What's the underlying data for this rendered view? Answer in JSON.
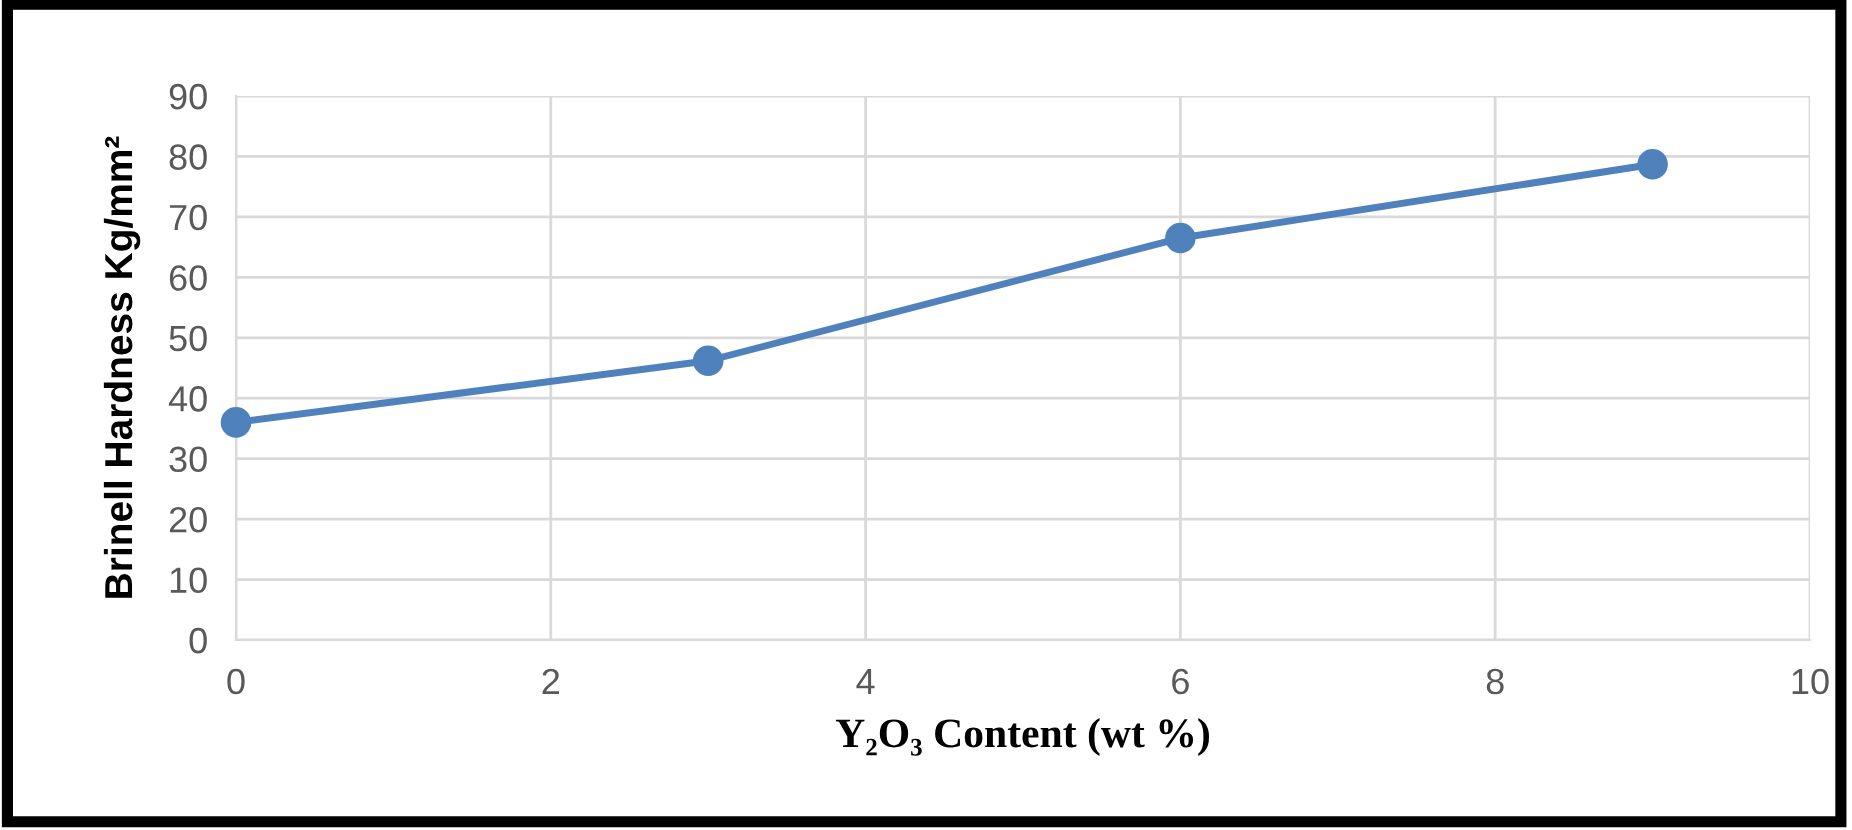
{
  "chart_data": {
    "type": "line",
    "xlabel": "Y₂O₃ Content (wt %)",
    "ylabel": "Brinell Hardness Kg/mm²",
    "x": [
      0,
      3,
      6,
      9
    ],
    "series": [
      {
        "color": "#4f81bd",
        "values": [
          36,
          46.2,
          66.5,
          78.7
        ]
      }
    ],
    "xlim": [
      0,
      10
    ],
    "xticks": [
      0,
      2,
      4,
      6,
      8,
      10
    ],
    "ylim": [
      0,
      90
    ],
    "yticks": [
      0,
      10,
      20,
      30,
      40,
      50,
      60,
      70,
      80,
      90
    ],
    "grid": true,
    "marker": "circle",
    "line_style": "solid",
    "legend": false
  }
}
